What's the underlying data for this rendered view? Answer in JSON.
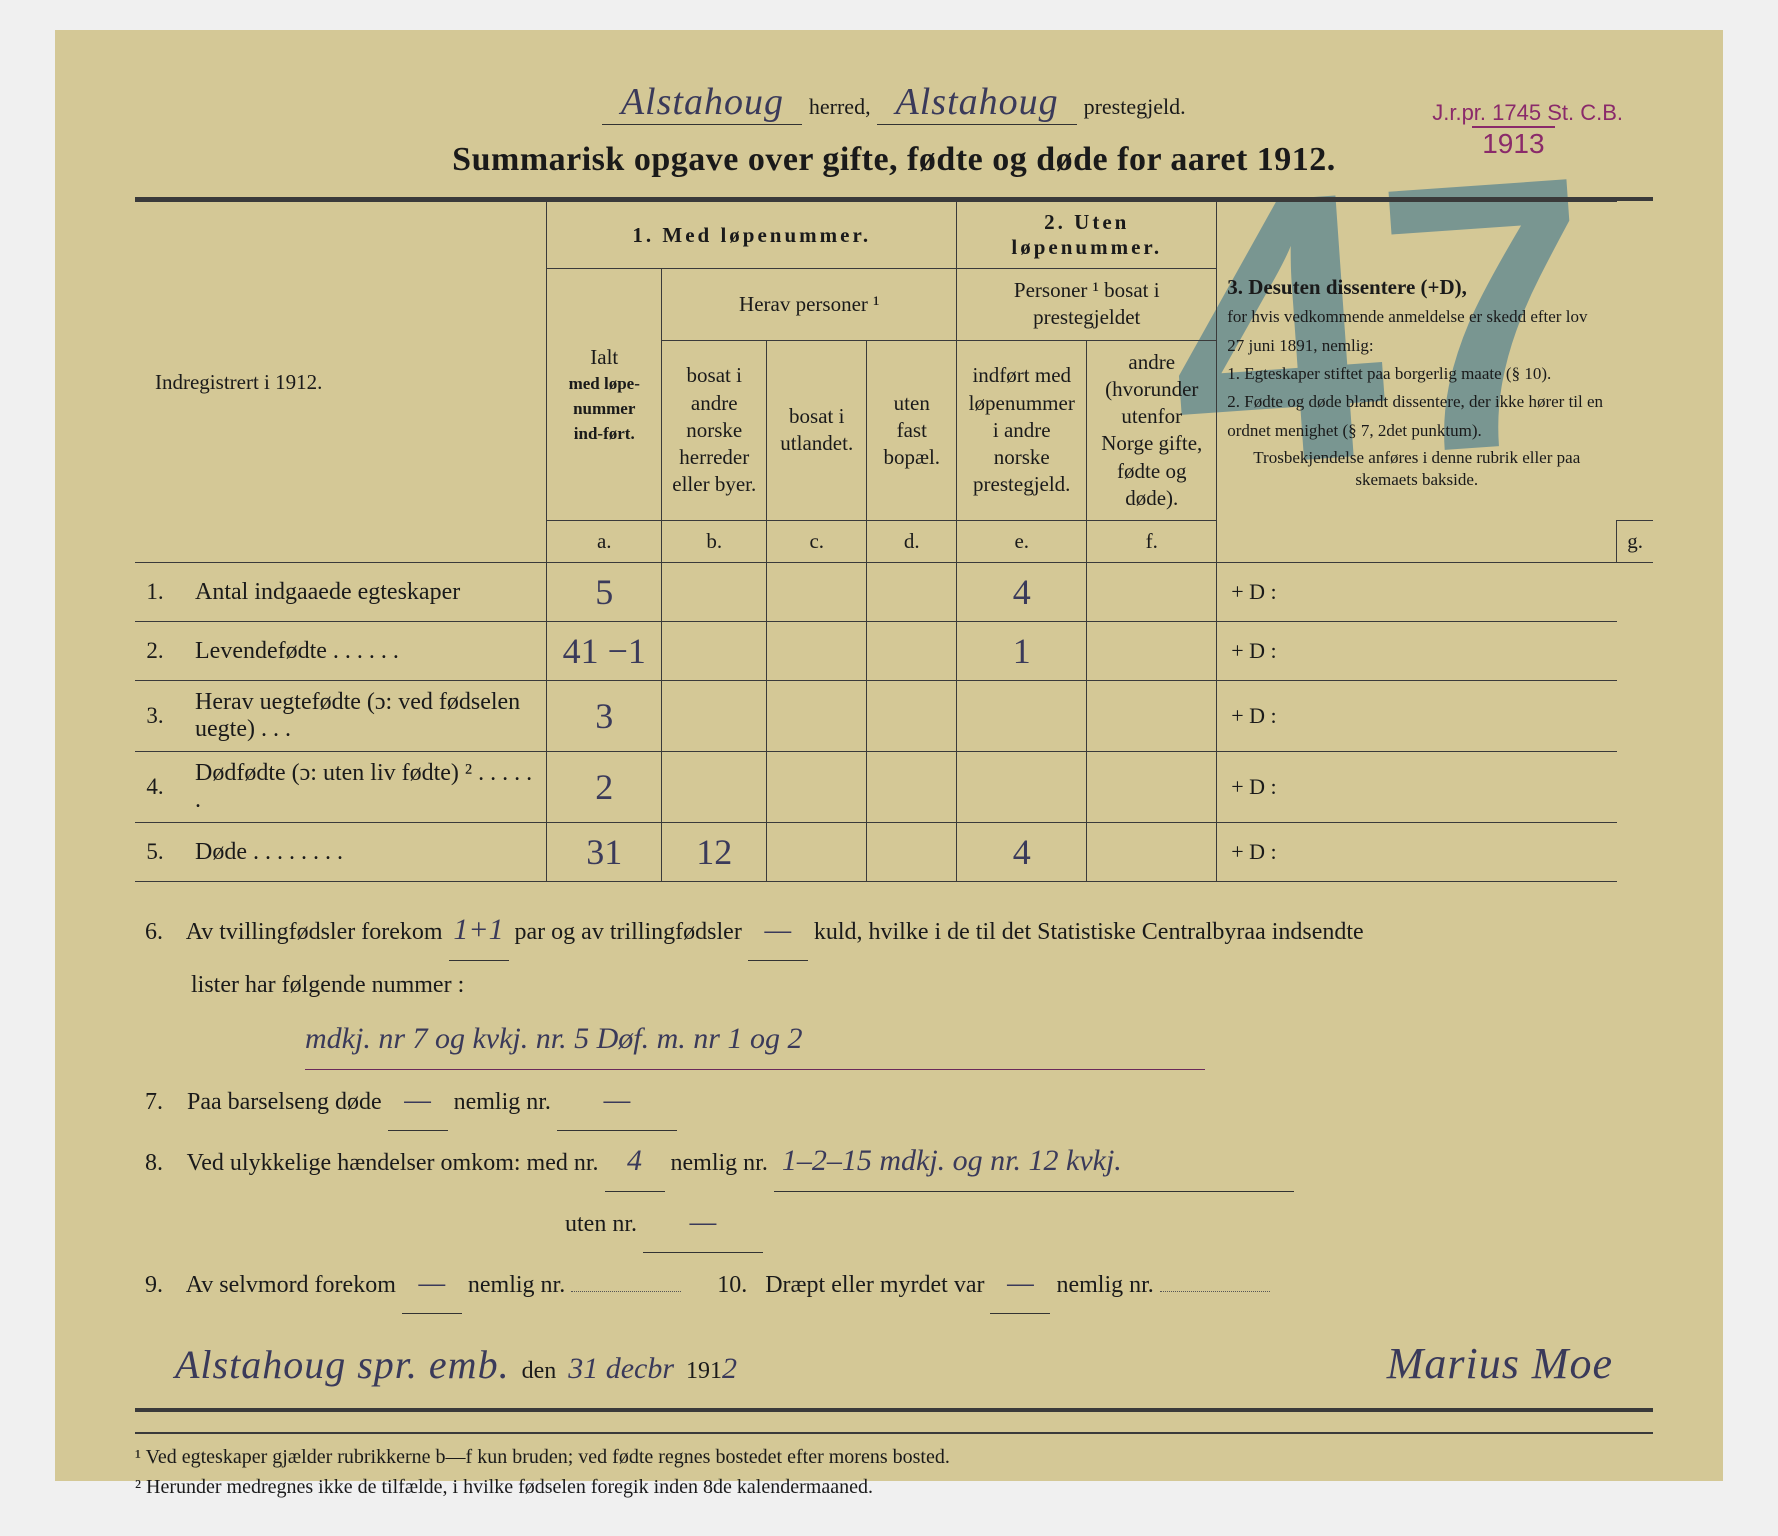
{
  "header": {
    "herred_value": "Alstahoug",
    "herred_label": "herred,",
    "prestegjeld_value": "Alstahoug",
    "prestegjeld_label": "prestegjeld.",
    "main_title": "Summarisk opgave over gifte, fødte og døde for aaret 1912."
  },
  "stamp": {
    "line1": "J.r.pr. 1745  St. C.B.",
    "year": "1913"
  },
  "big_mark": "47",
  "colheads": {
    "indreg": "Indregistrert i 1912.",
    "c1_title": "1.  Med løpenummer.",
    "c1_ialt": "Ialt",
    "c1_ialt2": "med løpe-nummer ind-ført.",
    "c1_herav": "Herav personer ¹",
    "c1_b": "bosat i andre norske herreder eller byer.",
    "c1_c": "bosat i utlandet.",
    "c1_d": "uten fast bopæl.",
    "c2_title": "2. Uten løpenummer.",
    "c2_sub": "Personer ¹ bosat i prestegjeldet",
    "c2_e": "indført med løpenummer i andre norske prestegjeld.",
    "c2_f": "andre (hvorunder utenfor Norge gifte, fødte og døde).",
    "c3_title": "3. Desuten dissentere (+D),",
    "c3_body": "for hvis vedkommende anmeldelse er skedd efter lov 27 juni 1891, nemlig:\n1. Egteskaper stiftet paa borgerlig maate (§ 10).\n2. Fødte og døde blandt dissentere, der ikke hører til en ordnet menighet (§ 7, 2det punktum).",
    "c3_foot": "Trosbekjendelse anføres i denne rubrik eller paa skemaets bakside.",
    "sub_a": "a.",
    "sub_b": "b.",
    "sub_c": "c.",
    "sub_d": "d.",
    "sub_e": "e.",
    "sub_f": "f.",
    "sub_g": "g."
  },
  "rows": [
    {
      "n": "1.",
      "label": "Antal indgaaede egteskaper",
      "a": "5",
      "b": "",
      "c": "",
      "d": "",
      "e": "4",
      "f": "",
      "g": "+ D :"
    },
    {
      "n": "2.",
      "label": "Levendefødte  .  .  .  .  .  .",
      "a": "41 −1",
      "b": "",
      "c": "",
      "d": "",
      "e": "1",
      "f": "",
      "g": "+ D :"
    },
    {
      "n": "3.",
      "label": "Herav uegtefødte (ɔ: ved fødselen uegte)  .  .  .",
      "a": "3",
      "b": "",
      "c": "",
      "d": "",
      "e": "",
      "f": "",
      "g": "+ D :"
    },
    {
      "n": "4.",
      "label": "Dødfødte (ɔ: uten liv fødte) ²  .  .  .  .  .  .",
      "a": "2",
      "b": "",
      "c": "",
      "d": "",
      "e": "",
      "f": "",
      "g": "+ D :"
    },
    {
      "n": "5.",
      "label": "Døde  .  .  .  .  .  .  .  .",
      "a": "31",
      "b": "12",
      "c": "",
      "d": "",
      "e": "4",
      "f": "",
      "g": "+ D :"
    }
  ],
  "lower": {
    "l6a": "Av tvillingfødsler forekom",
    "l6_twin": "1+1",
    "l6b": "par og av trillingfødsler",
    "l6_trip": "—",
    "l6c": "kuld, hvilke i de til det Statistiske Centralbyraa indsendte",
    "l6d": "lister har følgende nummer :",
    "l6_hw": "mdkj. nr 7 og kvkj. nr. 5  Døf. m. nr 1 og 2",
    "l7": "Paa barselseng døde",
    "l7_v1": "—",
    "l7_nemlig": "nemlig nr.",
    "l7_v2": "—",
    "l8": "Ved ulykkelige hændelser omkom:  med nr.",
    "l8_med": "4",
    "l8_nemlig": "nemlig nr.",
    "l8_hw": "1–2–15 mdkj. og nr. 12 kvkj.",
    "l8_uten": "uten nr.",
    "l8_uten_v": "—",
    "l9": "Av selvmord forekom",
    "l9_v": "—",
    "l9_nemlig": "nemlig nr.",
    "l10": "Dræpt eller myrdet var",
    "l10_v": "—",
    "l10_nemlig": "nemlig nr.",
    "place": "Alstahoug spr. emb.",
    "den": "den",
    "date": "31 decbr",
    "year_prefix": "191",
    "year_digit": "2",
    "signature": "Marius Moe"
  },
  "footnotes": {
    "f1": "¹ Ved egteskaper gjælder rubrikkerne b—f kun bruden; ved fødte regnes bostedet efter morens bosted.",
    "f2": "² Herunder medregnes ikke de tilfælde, i hvilke fødselen foregik inden 8de kalendermaaned."
  },
  "colors": {
    "paper": "#d4c896",
    "ink": "#1a1a1a",
    "handwriting": "#3a3a5a",
    "stamp": "#8a2a6a",
    "pencil_mark": "rgba(30,100,140,0.5)"
  }
}
